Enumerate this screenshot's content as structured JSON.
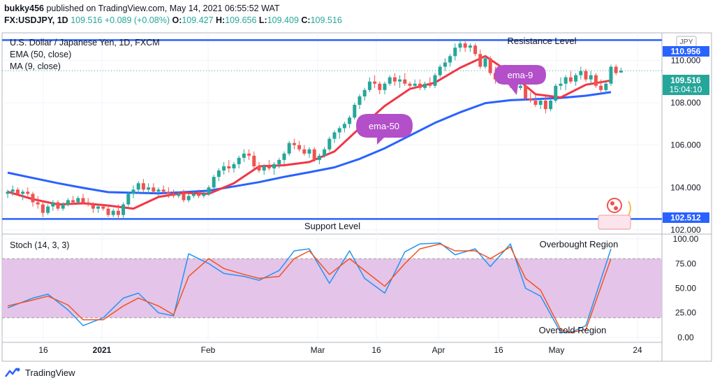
{
  "header": {
    "author": "bukky456",
    "published": "published on TradingView.com, May 14, 2021 06:55:52 WAT",
    "symbol": "FX:USDJPY, 1D",
    "last": "109.516",
    "change": "+0.089 (+0.08%)",
    "o_label": "O:",
    "o": "109.427",
    "h_label": "H:",
    "h": "109.656",
    "l_label": "L:",
    "l": "109.409",
    "c_label": "C:",
    "c": "109.516"
  },
  "footer": {
    "brand": "TradingView"
  },
  "colors": {
    "up": "#26a69a",
    "down": "#ef5350",
    "ema50": "#2962ff",
    "ma9": "#f23645",
    "level": "#2962ff",
    "stoch_k": "#2196f3",
    "stoch_d": "#f4511e",
    "callout": "#b24fc9",
    "band": "#e1bee7"
  },
  "chart_data": [
    {
      "type": "candlestick",
      "title": "U.S. Dollar / Japanese Yen, 1D, FXCM",
      "indicators": [
        "EMA (50, close)",
        "MA (9, close)"
      ],
      "currency": "JPY",
      "ylim": [
        101.8,
        111.3
      ],
      "yticks": [
        "110.000",
        "108.000",
        "106.000",
        "104.000",
        "102.000"
      ],
      "xticks": [
        "16",
        "2021",
        "Feb",
        "Mar",
        "16",
        "Apr",
        "16",
        "May",
        "24"
      ],
      "levels": [
        {
          "label": "Resistance Level",
          "value": 110.956,
          "tag": "110.956"
        },
        {
          "label": "Support Level",
          "value": 102.512,
          "tag": "102.512"
        }
      ],
      "price_tag": {
        "value": "109.516",
        "timer": "15:04:10"
      },
      "annotations": [
        "ema-9",
        "ema-50"
      ],
      "candles": [
        {
          "o": 103.7,
          "h": 103.9,
          "l": 103.5,
          "c": 103.8
        },
        {
          "o": 103.8,
          "h": 104.1,
          "l": 103.6,
          "c": 103.9
        },
        {
          "o": 103.9,
          "h": 104.0,
          "l": 103.6,
          "c": 103.7
        },
        {
          "o": 103.7,
          "h": 103.9,
          "l": 103.4,
          "c": 103.8
        },
        {
          "o": 103.8,
          "h": 104.0,
          "l": 103.6,
          "c": 103.7
        },
        {
          "o": 103.7,
          "h": 103.8,
          "l": 103.1,
          "c": 103.3
        },
        {
          "o": 103.3,
          "h": 103.6,
          "l": 103.0,
          "c": 103.2
        },
        {
          "o": 103.2,
          "h": 103.4,
          "l": 102.6,
          "c": 102.8
        },
        {
          "o": 102.8,
          "h": 103.2,
          "l": 102.7,
          "c": 103.1
        },
        {
          "o": 103.1,
          "h": 103.4,
          "l": 102.9,
          "c": 103.3
        },
        {
          "o": 103.3,
          "h": 103.4,
          "l": 102.9,
          "c": 103.0
        },
        {
          "o": 103.0,
          "h": 103.3,
          "l": 102.9,
          "c": 103.2
        },
        {
          "o": 103.2,
          "h": 103.5,
          "l": 103.1,
          "c": 103.4
        },
        {
          "o": 103.4,
          "h": 103.6,
          "l": 103.2,
          "c": 103.3
        },
        {
          "o": 103.3,
          "h": 103.6,
          "l": 103.2,
          "c": 103.5
        },
        {
          "o": 103.5,
          "h": 103.7,
          "l": 103.2,
          "c": 103.3
        },
        {
          "o": 103.3,
          "h": 103.5,
          "l": 103.1,
          "c": 103.2
        },
        {
          "o": 103.2,
          "h": 103.3,
          "l": 102.8,
          "c": 103.0
        },
        {
          "o": 103.0,
          "h": 103.2,
          "l": 102.8,
          "c": 103.1
        },
        {
          "o": 103.1,
          "h": 103.2,
          "l": 102.9,
          "c": 103.0
        },
        {
          "o": 103.0,
          "h": 103.1,
          "l": 102.6,
          "c": 102.7
        },
        {
          "o": 102.7,
          "h": 103.0,
          "l": 102.6,
          "c": 102.9
        },
        {
          "o": 102.9,
          "h": 103.2,
          "l": 102.5,
          "c": 102.7
        },
        {
          "o": 102.7,
          "h": 103.3,
          "l": 102.5,
          "c": 103.2
        },
        {
          "o": 103.2,
          "h": 103.8,
          "l": 103.1,
          "c": 103.7
        },
        {
          "o": 103.7,
          "h": 104.1,
          "l": 103.5,
          "c": 103.9
        },
        {
          "o": 103.9,
          "h": 104.3,
          "l": 103.7,
          "c": 104.2
        },
        {
          "o": 104.2,
          "h": 104.4,
          "l": 103.8,
          "c": 103.9
        },
        {
          "o": 103.9,
          "h": 104.2,
          "l": 103.7,
          "c": 104.0
        },
        {
          "o": 104.0,
          "h": 104.2,
          "l": 103.7,
          "c": 103.8
        },
        {
          "o": 103.8,
          "h": 104.0,
          "l": 103.6,
          "c": 103.9
        },
        {
          "o": 103.9,
          "h": 104.1,
          "l": 103.7,
          "c": 103.8
        },
        {
          "o": 103.8,
          "h": 104.0,
          "l": 103.5,
          "c": 103.7
        },
        {
          "o": 103.7,
          "h": 103.9,
          "l": 103.5,
          "c": 103.6
        },
        {
          "o": 103.6,
          "h": 103.8,
          "l": 103.5,
          "c": 103.7
        },
        {
          "o": 103.7,
          "h": 103.9,
          "l": 103.3,
          "c": 103.4
        },
        {
          "o": 103.4,
          "h": 103.7,
          "l": 103.3,
          "c": 103.6
        },
        {
          "o": 103.6,
          "h": 103.8,
          "l": 103.5,
          "c": 103.7
        },
        {
          "o": 103.7,
          "h": 103.9,
          "l": 103.5,
          "c": 103.6
        },
        {
          "o": 103.6,
          "h": 103.8,
          "l": 103.5,
          "c": 103.7
        },
        {
          "o": 103.7,
          "h": 104.1,
          "l": 103.6,
          "c": 104.0
        },
        {
          "o": 104.0,
          "h": 104.6,
          "l": 103.9,
          "c": 104.5
        },
        {
          "o": 104.5,
          "h": 104.9,
          "l": 104.3,
          "c": 104.8
        },
        {
          "o": 104.8,
          "h": 105.2,
          "l": 104.6,
          "c": 105.0
        },
        {
          "o": 105.0,
          "h": 105.3,
          "l": 104.7,
          "c": 104.9
        },
        {
          "o": 104.9,
          "h": 105.2,
          "l": 104.7,
          "c": 105.1
        },
        {
          "o": 105.1,
          "h": 105.5,
          "l": 104.9,
          "c": 105.4
        },
        {
          "o": 105.4,
          "h": 105.8,
          "l": 105.2,
          "c": 105.6
        },
        {
          "o": 105.6,
          "h": 105.8,
          "l": 105.3,
          "c": 105.5
        },
        {
          "o": 105.5,
          "h": 105.7,
          "l": 104.9,
          "c": 105.0
        },
        {
          "o": 105.0,
          "h": 105.2,
          "l": 104.7,
          "c": 104.8
        },
        {
          "o": 104.8,
          "h": 105.1,
          "l": 104.6,
          "c": 105.0
        },
        {
          "o": 105.0,
          "h": 105.3,
          "l": 104.8,
          "c": 104.9
        },
        {
          "o": 104.9,
          "h": 105.2,
          "l": 104.6,
          "c": 105.1
        },
        {
          "o": 105.1,
          "h": 105.4,
          "l": 104.9,
          "c": 105.3
        },
        {
          "o": 105.3,
          "h": 105.7,
          "l": 105.1,
          "c": 105.6
        },
        {
          "o": 105.6,
          "h": 106.2,
          "l": 105.5,
          "c": 106.1
        },
        {
          "o": 106.1,
          "h": 106.3,
          "l": 105.8,
          "c": 106.0
        },
        {
          "o": 106.0,
          "h": 106.2,
          "l": 105.7,
          "c": 105.8
        },
        {
          "o": 105.8,
          "h": 106.0,
          "l": 105.5,
          "c": 105.6
        },
        {
          "o": 105.6,
          "h": 105.9,
          "l": 105.4,
          "c": 105.8
        },
        {
          "o": 105.8,
          "h": 105.9,
          "l": 105.2,
          "c": 105.3
        },
        {
          "o": 105.3,
          "h": 105.6,
          "l": 105.1,
          "c": 105.5
        },
        {
          "o": 105.5,
          "h": 105.9,
          "l": 105.4,
          "c": 105.8
        },
        {
          "o": 105.8,
          "h": 106.4,
          "l": 105.7,
          "c": 106.3
        },
        {
          "o": 106.3,
          "h": 106.7,
          "l": 106.1,
          "c": 106.6
        },
        {
          "o": 106.6,
          "h": 106.9,
          "l": 106.3,
          "c": 106.8
        },
        {
          "o": 106.8,
          "h": 107.1,
          "l": 106.6,
          "c": 107.0
        },
        {
          "o": 107.0,
          "h": 107.4,
          "l": 106.8,
          "c": 107.3
        },
        {
          "o": 107.3,
          "h": 108.0,
          "l": 107.2,
          "c": 107.9
        },
        {
          "o": 107.9,
          "h": 108.4,
          "l": 107.7,
          "c": 108.3
        },
        {
          "o": 108.3,
          "h": 108.7,
          "l": 108.1,
          "c": 108.6
        },
        {
          "o": 108.6,
          "h": 109.2,
          "l": 108.5,
          "c": 109.0
        },
        {
          "o": 109.0,
          "h": 109.3,
          "l": 108.7,
          "c": 108.9
        },
        {
          "o": 108.9,
          "h": 109.0,
          "l": 108.4,
          "c": 108.6
        },
        {
          "o": 108.6,
          "h": 109.0,
          "l": 108.4,
          "c": 108.9
        },
        {
          "o": 108.9,
          "h": 109.3,
          "l": 108.8,
          "c": 109.2
        },
        {
          "o": 109.2,
          "h": 109.4,
          "l": 108.8,
          "c": 109.0
        },
        {
          "o": 109.0,
          "h": 109.3,
          "l": 108.7,
          "c": 109.1
        },
        {
          "o": 109.1,
          "h": 109.4,
          "l": 108.8,
          "c": 108.9
        },
        {
          "o": 108.9,
          "h": 109.0,
          "l": 108.6,
          "c": 108.8
        },
        {
          "o": 108.8,
          "h": 109.1,
          "l": 108.7,
          "c": 108.9
        },
        {
          "o": 108.9,
          "h": 109.1,
          "l": 108.6,
          "c": 108.7
        },
        {
          "o": 108.7,
          "h": 109.0,
          "l": 108.6,
          "c": 108.9
        },
        {
          "o": 108.9,
          "h": 109.2,
          "l": 108.7,
          "c": 108.8
        },
        {
          "o": 108.8,
          "h": 109.4,
          "l": 108.7,
          "c": 109.3
        },
        {
          "o": 109.3,
          "h": 109.8,
          "l": 109.2,
          "c": 109.7
        },
        {
          "o": 109.7,
          "h": 110.1,
          "l": 109.5,
          "c": 109.9
        },
        {
          "o": 109.9,
          "h": 110.3,
          "l": 109.7,
          "c": 110.2
        },
        {
          "o": 110.2,
          "h": 110.8,
          "l": 110.0,
          "c": 110.6
        },
        {
          "o": 110.6,
          "h": 111.0,
          "l": 110.4,
          "c": 110.8
        },
        {
          "o": 110.8,
          "h": 110.9,
          "l": 110.4,
          "c": 110.6
        },
        {
          "o": 110.6,
          "h": 110.8,
          "l": 110.4,
          "c": 110.7
        },
        {
          "o": 110.7,
          "h": 110.8,
          "l": 110.2,
          "c": 110.3
        },
        {
          "o": 110.3,
          "h": 110.5,
          "l": 109.6,
          "c": 109.7
        },
        {
          "o": 109.7,
          "h": 110.2,
          "l": 109.6,
          "c": 110.1
        },
        {
          "o": 110.1,
          "h": 110.2,
          "l": 109.3,
          "c": 109.4
        },
        {
          "o": 109.4,
          "h": 109.7,
          "l": 108.9,
          "c": 109.1
        },
        {
          "o": 109.1,
          "h": 109.7,
          "l": 109.0,
          "c": 109.6
        },
        {
          "o": 109.6,
          "h": 109.8,
          "l": 109.1,
          "c": 109.2
        },
        {
          "o": 109.2,
          "h": 109.4,
          "l": 108.7,
          "c": 108.8
        },
        {
          "o": 108.8,
          "h": 109.0,
          "l": 108.5,
          "c": 108.7
        },
        {
          "o": 108.7,
          "h": 108.9,
          "l": 108.6,
          "c": 108.8
        },
        {
          "o": 108.8,
          "h": 108.9,
          "l": 108.1,
          "c": 108.2
        },
        {
          "o": 108.2,
          "h": 108.5,
          "l": 108.0,
          "c": 108.1
        },
        {
          "o": 108.1,
          "h": 108.4,
          "l": 107.8,
          "c": 107.9
        },
        {
          "o": 107.9,
          "h": 108.2,
          "l": 107.7,
          "c": 108.1
        },
        {
          "o": 108.1,
          "h": 108.3,
          "l": 107.5,
          "c": 107.7
        },
        {
          "o": 107.7,
          "h": 108.2,
          "l": 107.6,
          "c": 108.1
        },
        {
          "o": 108.1,
          "h": 108.9,
          "l": 108.0,
          "c": 108.8
        },
        {
          "o": 108.8,
          "h": 109.2,
          "l": 108.6,
          "c": 108.9
        },
        {
          "o": 108.9,
          "h": 109.3,
          "l": 108.6,
          "c": 109.2
        },
        {
          "o": 109.2,
          "h": 109.5,
          "l": 108.9,
          "c": 109.0
        },
        {
          "o": 109.0,
          "h": 109.4,
          "l": 108.8,
          "c": 109.3
        },
        {
          "o": 109.3,
          "h": 109.7,
          "l": 109.1,
          "c": 109.5
        },
        {
          "o": 109.5,
          "h": 109.6,
          "l": 109.0,
          "c": 109.1
        },
        {
          "o": 109.1,
          "h": 109.5,
          "l": 108.9,
          "c": 109.3
        },
        {
          "o": 109.3,
          "h": 109.4,
          "l": 108.7,
          "c": 108.8
        },
        {
          "o": 108.8,
          "h": 109.1,
          "l": 108.5,
          "c": 108.6
        },
        {
          "o": 108.6,
          "h": 109.0,
          "l": 108.4,
          "c": 108.9
        },
        {
          "o": 108.9,
          "h": 109.8,
          "l": 108.8,
          "c": 109.7
        },
        {
          "o": 109.7,
          "h": 109.8,
          "l": 109.3,
          "c": 109.4
        },
        {
          "o": 109.427,
          "h": 109.656,
          "l": 109.409,
          "c": 109.516
        }
      ],
      "series": [
        {
          "name": "EMA (50, close)",
          "x": [
            0,
            5,
            10,
            15,
            20,
            25,
            30,
            35,
            40,
            45,
            50,
            55,
            60,
            65,
            70,
            75,
            80,
            85,
            90,
            95,
            100,
            105,
            110,
            115,
            120
          ],
          "values": [
            104.7,
            104.45,
            104.2,
            103.98,
            103.78,
            103.75,
            103.72,
            103.78,
            103.85,
            104.05,
            104.25,
            104.5,
            104.72,
            104.95,
            105.35,
            105.85,
            106.45,
            107.05,
            107.55,
            107.98,
            108.12,
            108.17,
            108.23,
            108.33,
            108.5
          ]
        },
        {
          "name": "MA (9, close)",
          "x": [
            0,
            5,
            10,
            15,
            20,
            25,
            30,
            35,
            40,
            45,
            50,
            55,
            60,
            65,
            70,
            75,
            80,
            85,
            90,
            95,
            100,
            105,
            110,
            115,
            120
          ],
          "values": [
            103.8,
            103.45,
            103.2,
            103.25,
            103.15,
            103.0,
            103.55,
            103.75,
            103.7,
            104.2,
            105.0,
            105.05,
            105.2,
            105.7,
            106.8,
            107.85,
            108.65,
            108.95,
            109.65,
            110.2,
            109.4,
            108.4,
            108.25,
            108.85,
            109.05
          ]
        }
      ]
    },
    {
      "type": "line",
      "title": "Stoch (14, 3, 3)",
      "ylim": [
        -5,
        105
      ],
      "yticks": [
        "100.00",
        "75.00",
        "50.00",
        "25.00",
        "0.00"
      ],
      "band": [
        20,
        80
      ],
      "annotations": [
        "Overbought Region",
        "Oversold Region"
      ],
      "series": [
        {
          "name": "%K",
          "x": [
            0,
            5,
            8,
            12,
            15,
            19,
            23,
            26,
            30,
            33,
            36,
            40,
            43,
            47,
            50,
            54,
            57,
            60,
            64,
            68,
            71,
            75,
            79,
            82,
            86,
            89,
            93,
            96,
            100,
            103,
            106,
            110,
            112,
            115,
            120
          ],
          "values": [
            30,
            40,
            44,
            28,
            12,
            20,
            40,
            45,
            25,
            22,
            85,
            75,
            65,
            62,
            58,
            68,
            88,
            90,
            55,
            88,
            60,
            45,
            87,
            95,
            96,
            84,
            90,
            72,
            95,
            50,
            42,
            5,
            5,
            12,
            90
          ]
        },
        {
          "name": "%D",
          "x": [
            0,
            5,
            8,
            12,
            15,
            19,
            23,
            26,
            30,
            33,
            36,
            40,
            43,
            47,
            50,
            54,
            57,
            60,
            64,
            68,
            71,
            75,
            79,
            82,
            86,
            89,
            93,
            96,
            100,
            103,
            106,
            110,
            112,
            115,
            120
          ],
          "values": [
            32,
            38,
            42,
            33,
            18,
            18,
            32,
            40,
            32,
            23,
            62,
            80,
            70,
            64,
            60,
            62,
            80,
            88,
            64,
            80,
            68,
            52,
            75,
            90,
            95,
            88,
            88,
            80,
            92,
            60,
            48,
            8,
            5,
            8,
            80
          ]
        }
      ]
    }
  ]
}
